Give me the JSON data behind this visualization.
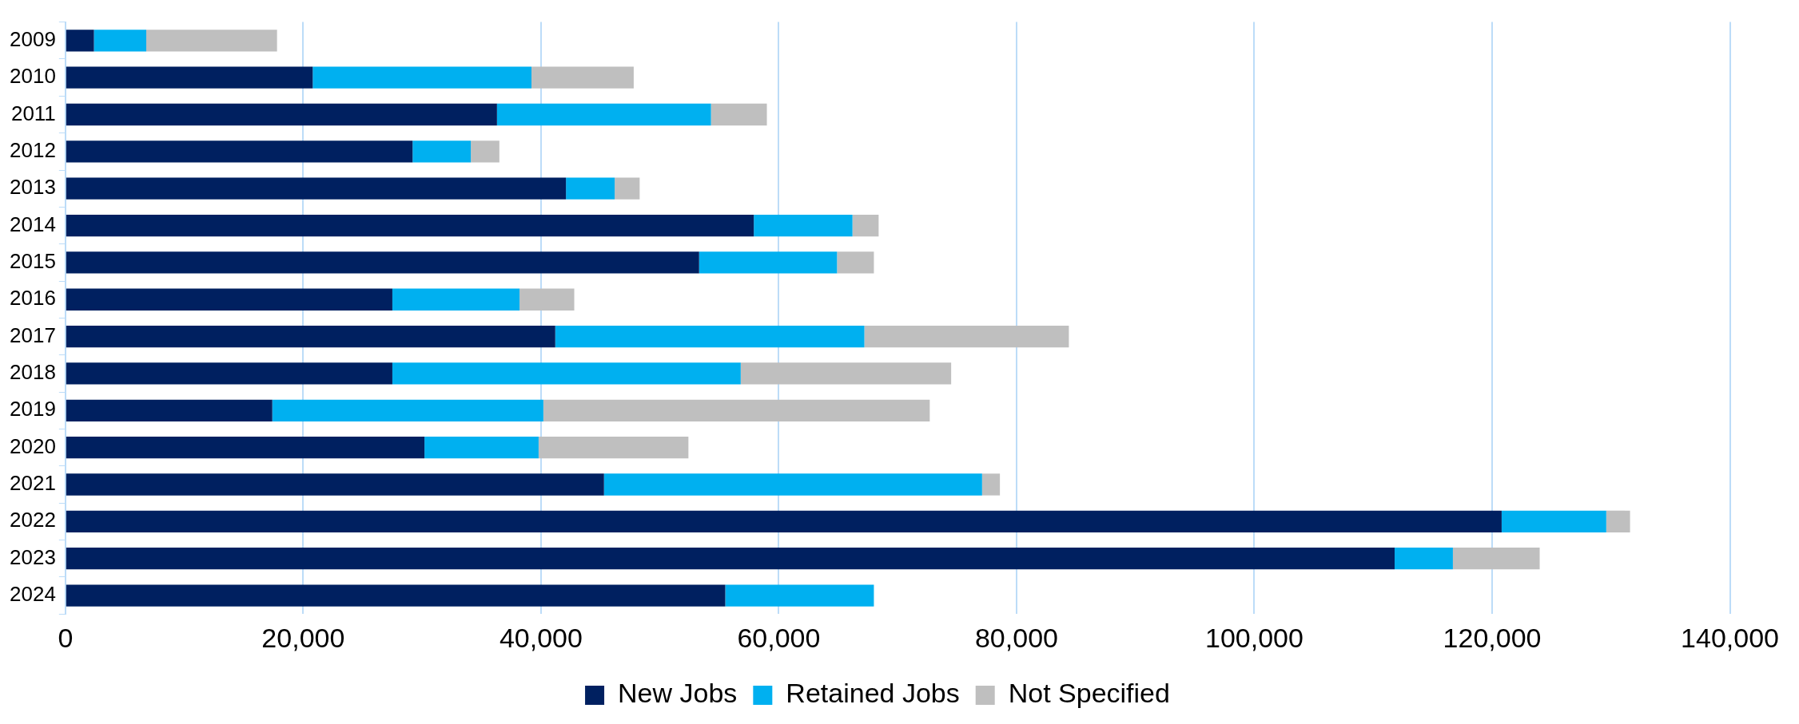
{
  "chart_data": {
    "type": "bar",
    "orientation": "horizontal",
    "stacked": true,
    "categories": [
      "2009",
      "2010",
      "2011",
      "2012",
      "2013",
      "2014",
      "2015",
      "2016",
      "2017",
      "2018",
      "2019",
      "2020",
      "2021",
      "2022",
      "2023",
      "2024"
    ],
    "series": [
      {
        "name": "New Jobs",
        "color": "#002060",
        "values": [
          2400,
          20800,
          36300,
          29200,
          42100,
          57900,
          53300,
          27500,
          41200,
          27500,
          17400,
          30200,
          45300,
          120800,
          111800,
          55500
        ]
      },
      {
        "name": "Retained Jobs",
        "color": "#00b0f0",
        "values": [
          4400,
          18400,
          18000,
          4900,
          4100,
          8300,
          11600,
          10700,
          26000,
          29300,
          22800,
          9600,
          31800,
          8800,
          4900,
          12500
        ]
      },
      {
        "name": "Not Specified",
        "color": "#bfbfbf",
        "values": [
          11000,
          8600,
          4700,
          2400,
          2100,
          2200,
          3100,
          4600,
          17200,
          17700,
          32500,
          12600,
          1500,
          2000,
          7300,
          null
        ]
      }
    ],
    "xlim": [
      0,
      140000
    ],
    "xticks": [
      0,
      {
        "value": 20000,
        "label": "20,000"
      },
      {
        "value": 40000,
        "label": "40,000"
      },
      {
        "value": 60000,
        "label": "60,000"
      },
      {
        "value": 80000,
        "label": "80,000"
      },
      {
        "value": 100000,
        "label": "100,000"
      },
      {
        "value": 120000,
        "label": "120,000"
      },
      {
        "value": 140000,
        "label": "140,000"
      }
    ],
    "grid": "x",
    "legend": "bottom"
  }
}
